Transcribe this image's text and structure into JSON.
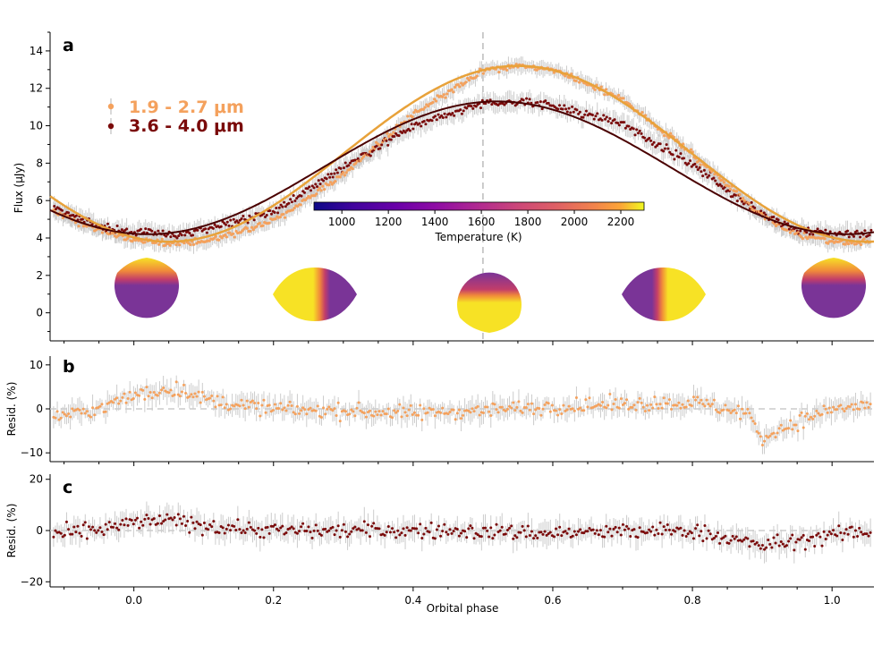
{
  "figure": {
    "panels": [
      {
        "letter": "a",
        "ylabel": "Flux (μJy)"
      },
      {
        "letter": "b",
        "ylabel": "Resid. (%)"
      },
      {
        "letter": "c",
        "ylabel": "Resid. (%)"
      }
    ],
    "xlabel": "Orbital phase"
  },
  "colorbar": {
    "label": "Temperature (K)",
    "range": [
      880,
      2300
    ],
    "ticks": [
      1000,
      1200,
      1400,
      1600,
      1800,
      2000,
      2200
    ],
    "colormap": "plasma"
  },
  "colors": {
    "band_short": "#f4a15d",
    "band_short_model": "#e8a23a",
    "band_long": "#7a0a0a",
    "band_long_model": "#4a0000",
    "errorbar": "#cccccc",
    "eclipse_line": "#bbbbbb"
  },
  "chart_data": [
    {
      "type": "scatter",
      "panel": "a",
      "x_range": [
        -0.12,
        1.06
      ],
      "ylim": [
        -1.5,
        15
      ],
      "x_ticks": [
        0.0,
        0.2,
        0.4,
        0.6,
        0.8,
        1.0
      ],
      "y_ticks": [
        0,
        2,
        4,
        6,
        8,
        10,
        12,
        14
      ],
      "legend_position": "upper-left",
      "series": [
        {
          "name": "1.9 - 2.7 μm",
          "model": {
            "mean": 8.5,
            "amplitude": 4.7,
            "peak_phase": 0.55
          },
          "x": [
            -0.12,
            -0.05,
            0.0,
            0.05,
            0.1,
            0.2,
            0.3,
            0.4,
            0.5,
            0.55,
            0.6,
            0.7,
            0.8,
            0.9,
            0.95,
            1.0,
            1.06
          ],
          "y": [
            5.5,
            4.4,
            3.9,
            3.7,
            3.8,
            4.9,
            7.4,
            10.6,
            12.9,
            13.2,
            13.0,
            11.4,
            8.5,
            5.2,
            4.2,
            3.8,
            3.8
          ]
        },
        {
          "name": "3.6 - 4.0 μm",
          "model": {
            "mean": 7.75,
            "amplitude": 3.55,
            "peak_phase": 0.52
          },
          "x": [
            -0.12,
            -0.05,
            0.0,
            0.05,
            0.1,
            0.2,
            0.3,
            0.4,
            0.5,
            0.55,
            0.6,
            0.7,
            0.8,
            0.9,
            0.95,
            1.0,
            1.06
          ],
          "y": [
            5.7,
            4.6,
            4.3,
            4.2,
            4.4,
            5.4,
            7.8,
            10.0,
            11.2,
            11.3,
            11.1,
            10.1,
            7.9,
            5.2,
            4.4,
            4.2,
            4.2
          ]
        }
      ],
      "vline_x": 0.5
    },
    {
      "type": "scatter",
      "panel": "b",
      "x_range": [
        -0.12,
        1.06
      ],
      "ylim": [
        -12,
        12
      ],
      "y_ticks": [
        -10,
        0,
        10
      ],
      "series": [
        {
          "band": "1.9 - 2.7 μm",
          "x": [
            -0.12,
            -0.05,
            0.0,
            0.05,
            0.08,
            0.1,
            0.2,
            0.4,
            0.6,
            0.8,
            0.88,
            0.9,
            0.92,
            0.95,
            1.0,
            1.06
          ],
          "y": [
            -2,
            0,
            3,
            4.5,
            4,
            2,
            0,
            -1,
            0.5,
            1.5,
            -1,
            -7,
            -5,
            -3,
            0,
            1
          ]
        }
      ]
    },
    {
      "type": "scatter",
      "panel": "c",
      "x_range": [
        -0.12,
        1.06
      ],
      "ylim": [
        -22,
        22
      ],
      "y_ticks": [
        -20,
        0,
        20
      ],
      "series": [
        {
          "band": "3.6 - 4.0 μm",
          "x": [
            -0.12,
            -0.05,
            0.0,
            0.05,
            0.1,
            0.2,
            0.4,
            0.6,
            0.8,
            0.9,
            0.95,
            1.0,
            1.06
          ],
          "y": [
            -2,
            0,
            3,
            4,
            2,
            0,
            0,
            -1,
            0,
            -6,
            -4,
            -2,
            0
          ]
        }
      ]
    }
  ]
}
